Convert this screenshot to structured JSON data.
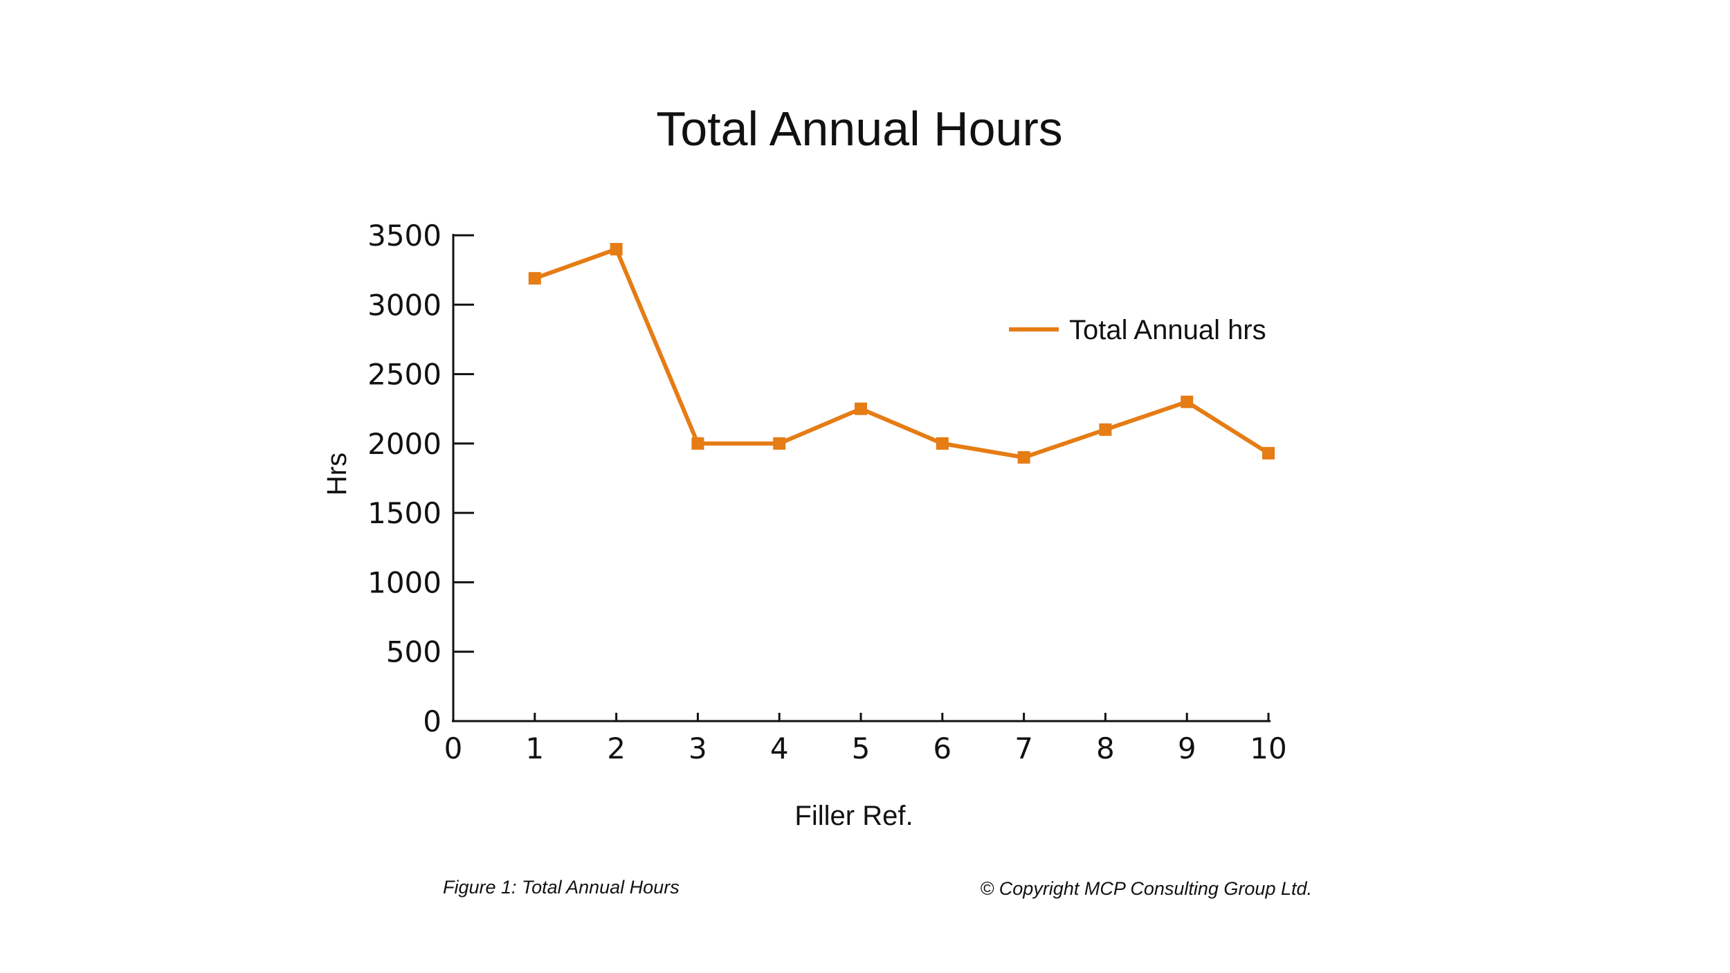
{
  "chart_data": {
    "type": "line",
    "title": "Total Annual Hours",
    "xlabel": "Filler Ref.",
    "ylabel": "Hrs",
    "xlim": [
      0,
      10
    ],
    "ylim": [
      0,
      3500
    ],
    "x_ticks": [
      0,
      1,
      2,
      3,
      4,
      5,
      6,
      7,
      8,
      9,
      10
    ],
    "y_ticks": [
      0,
      500,
      1000,
      1500,
      2000,
      2500,
      3000,
      3500
    ],
    "grid": false,
    "legend": "right",
    "series": [
      {
        "name": "Total Annual hrs",
        "color": "#E57C14",
        "marker": "square",
        "x": [
          1,
          2,
          3,
          4,
          5,
          6,
          7,
          8,
          9,
          10
        ],
        "y": [
          3190,
          3400,
          2000,
          2000,
          2250,
          2000,
          1900,
          2100,
          2300,
          1930
        ]
      }
    ]
  },
  "caption_left": "Figure 1: Total Annual Hours",
  "caption_right": "© Copyright MCP Consulting Group Ltd."
}
